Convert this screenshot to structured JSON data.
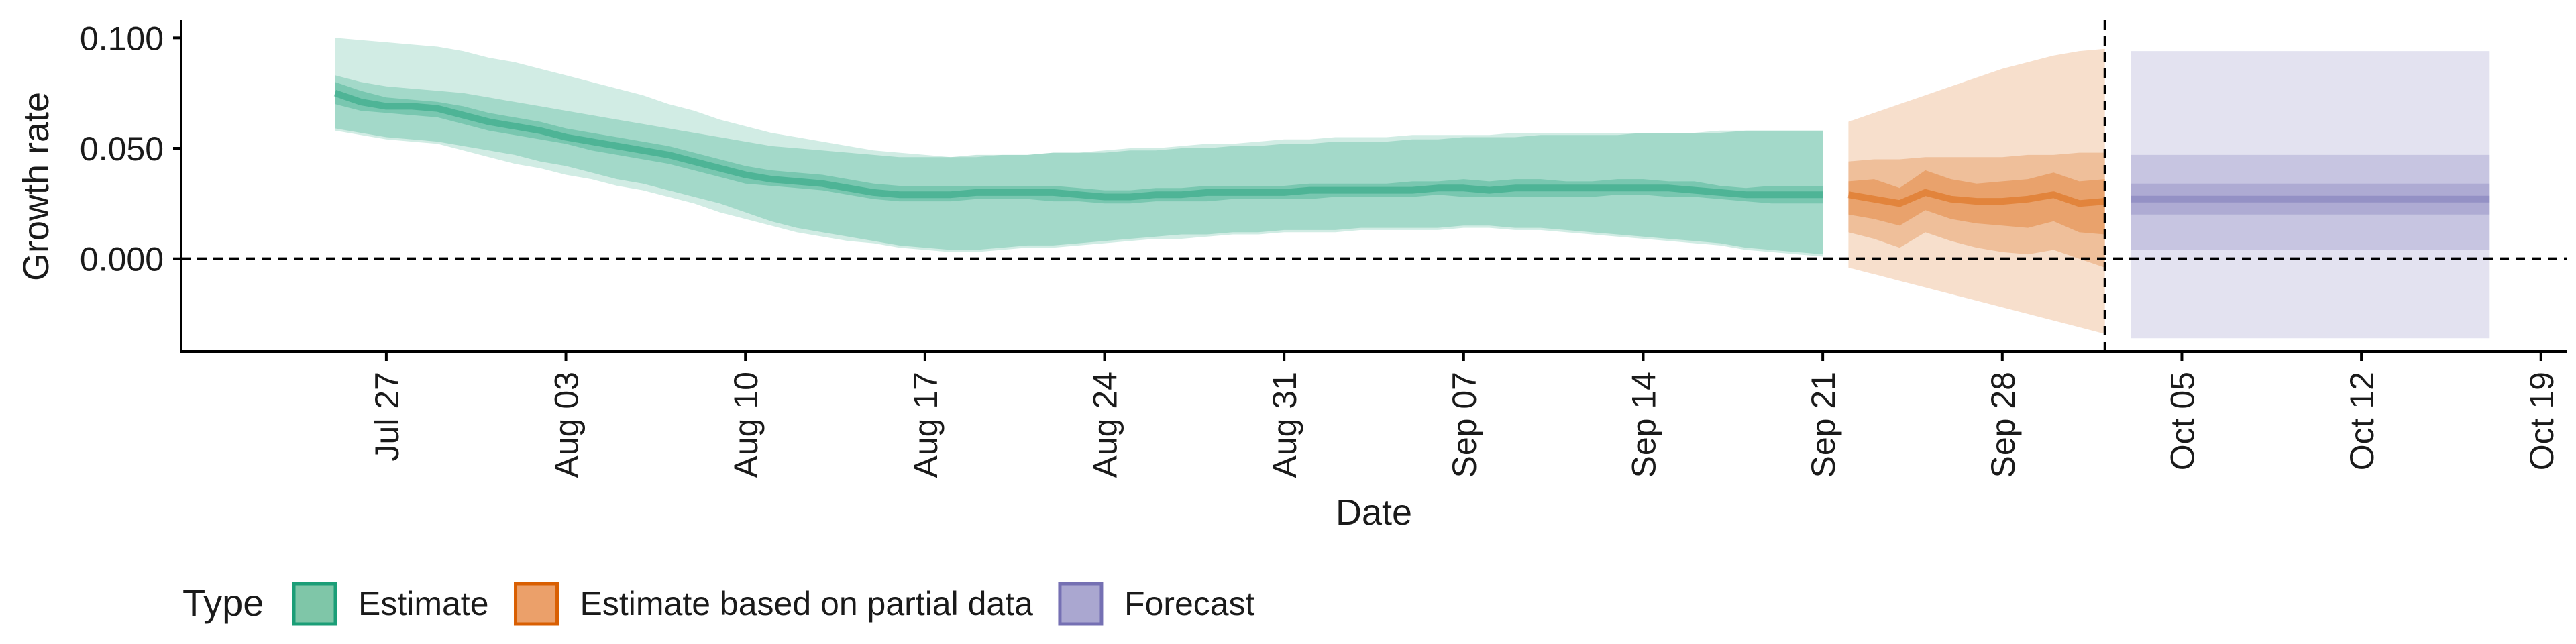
{
  "chart_data": {
    "type": "area",
    "xlabel": "Date",
    "ylabel": "Growth rate",
    "x_range": [
      "2021-07-19",
      "2021-10-20"
    ],
    "ylim": [
      -0.042,
      0.108
    ],
    "y_ticks": [
      0.0,
      0.05,
      0.1
    ],
    "y_tick_labels": [
      "0.000",
      "0.050",
      "0.100"
    ],
    "x_ticks": [
      "2021-07-27",
      "2021-08-03",
      "2021-08-10",
      "2021-08-17",
      "2021-08-24",
      "2021-08-31",
      "2021-09-07",
      "2021-09-14",
      "2021-09-21",
      "2021-09-28",
      "2021-10-05",
      "2021-10-12",
      "2021-10-19"
    ],
    "x_tick_labels": [
      "Jul 27",
      "Aug 03",
      "Aug 10",
      "Aug 17",
      "Aug 24",
      "Aug 31",
      "Sep 07",
      "Sep 14",
      "Sep 21",
      "Sep 28",
      "Oct 05",
      "Oct 12",
      "Oct 19"
    ],
    "hline": 0,
    "forecast_start_line": "2021-10-02",
    "grid": false,
    "legend": {
      "title": "Type",
      "position": "bottom-left",
      "entries": [
        {
          "label": "Estimate",
          "fill": "#7fc6a8",
          "border": "#1b9e77"
        },
        {
          "label": "Estimate based on partial data",
          "fill": "#eba06a",
          "border": "#d95f02"
        },
        {
          "label": "Forecast",
          "fill": "#aaa7d0",
          "border": "#7570b3"
        }
      ]
    },
    "colors": {
      "estimate": "#1b9e77",
      "partial": "#d95f02",
      "forecast": "#7570b3"
    },
    "series": [
      {
        "name": "Estimate",
        "type": "Estimate",
        "x": [
          "2021-07-25",
          "2021-07-26",
          "2021-07-27",
          "2021-07-28",
          "2021-07-29",
          "2021-07-30",
          "2021-07-31",
          "2021-08-01",
          "2021-08-02",
          "2021-08-03",
          "2021-08-04",
          "2021-08-05",
          "2021-08-06",
          "2021-08-07",
          "2021-08-08",
          "2021-08-09",
          "2021-08-10",
          "2021-08-11",
          "2021-08-12",
          "2021-08-13",
          "2021-08-14",
          "2021-08-15",
          "2021-08-16",
          "2021-08-17",
          "2021-08-18",
          "2021-08-19",
          "2021-08-20",
          "2021-08-21",
          "2021-08-22",
          "2021-08-23",
          "2021-08-24",
          "2021-08-25",
          "2021-08-26",
          "2021-08-27",
          "2021-08-28",
          "2021-08-29",
          "2021-08-30",
          "2021-08-31",
          "2021-09-01",
          "2021-09-02",
          "2021-09-03",
          "2021-09-04",
          "2021-09-05",
          "2021-09-06",
          "2021-09-07",
          "2021-09-08",
          "2021-09-09",
          "2021-09-10",
          "2021-09-11",
          "2021-09-12",
          "2021-09-13",
          "2021-09-14",
          "2021-09-15",
          "2021-09-16",
          "2021-09-17",
          "2021-09-18",
          "2021-09-19",
          "2021-09-20",
          "2021-09-21"
        ],
        "median": [
          0.075,
          0.071,
          0.069,
          0.069,
          0.068,
          0.065,
          0.062,
          0.06,
          0.058,
          0.055,
          0.053,
          0.051,
          0.049,
          0.047,
          0.044,
          0.041,
          0.038,
          0.036,
          0.035,
          0.034,
          0.032,
          0.03,
          0.029,
          0.029,
          0.029,
          0.03,
          0.03,
          0.03,
          0.03,
          0.029,
          0.028,
          0.028,
          0.029,
          0.029,
          0.03,
          0.03,
          0.03,
          0.03,
          0.031,
          0.031,
          0.031,
          0.031,
          0.031,
          0.032,
          0.032,
          0.031,
          0.032,
          0.032,
          0.032,
          0.032,
          0.032,
          0.032,
          0.032,
          0.031,
          0.03,
          0.029,
          0.029,
          0.029,
          0.029
        ],
        "lower_50": [
          0.07,
          0.067,
          0.066,
          0.065,
          0.064,
          0.061,
          0.058,
          0.056,
          0.054,
          0.052,
          0.049,
          0.047,
          0.045,
          0.043,
          0.04,
          0.037,
          0.034,
          0.033,
          0.032,
          0.031,
          0.029,
          0.027,
          0.026,
          0.026,
          0.026,
          0.027,
          0.027,
          0.027,
          0.026,
          0.026,
          0.025,
          0.025,
          0.026,
          0.026,
          0.026,
          0.027,
          0.027,
          0.027,
          0.027,
          0.028,
          0.028,
          0.028,
          0.028,
          0.029,
          0.028,
          0.028,
          0.028,
          0.028,
          0.028,
          0.028,
          0.029,
          0.029,
          0.028,
          0.028,
          0.027,
          0.026,
          0.025,
          0.025,
          0.025
        ],
        "upper_50": [
          0.08,
          0.076,
          0.073,
          0.072,
          0.071,
          0.069,
          0.066,
          0.064,
          0.062,
          0.059,
          0.057,
          0.055,
          0.053,
          0.051,
          0.048,
          0.045,
          0.042,
          0.04,
          0.039,
          0.038,
          0.036,
          0.034,
          0.033,
          0.033,
          0.033,
          0.033,
          0.033,
          0.033,
          0.033,
          0.032,
          0.031,
          0.031,
          0.032,
          0.032,
          0.033,
          0.033,
          0.033,
          0.033,
          0.034,
          0.034,
          0.034,
          0.034,
          0.035,
          0.035,
          0.036,
          0.035,
          0.036,
          0.036,
          0.035,
          0.035,
          0.036,
          0.036,
          0.035,
          0.035,
          0.033,
          0.032,
          0.033,
          0.033,
          0.033
        ],
        "lower_90": [
          0.059,
          0.057,
          0.055,
          0.054,
          0.053,
          0.051,
          0.049,
          0.047,
          0.044,
          0.042,
          0.039,
          0.036,
          0.034,
          0.031,
          0.028,
          0.025,
          0.021,
          0.017,
          0.014,
          0.012,
          0.01,
          0.008,
          0.006,
          0.005,
          0.004,
          0.004,
          0.005,
          0.006,
          0.006,
          0.007,
          0.008,
          0.009,
          0.01,
          0.011,
          0.011,
          0.012,
          0.012,
          0.013,
          0.013,
          0.013,
          0.014,
          0.014,
          0.014,
          0.014,
          0.015,
          0.015,
          0.014,
          0.014,
          0.013,
          0.012,
          0.011,
          0.01,
          0.009,
          0.008,
          0.007,
          0.005,
          0.004,
          0.003,
          0.002
        ],
        "upper_90": [
          0.083,
          0.08,
          0.078,
          0.077,
          0.076,
          0.075,
          0.073,
          0.071,
          0.069,
          0.067,
          0.065,
          0.063,
          0.061,
          0.059,
          0.057,
          0.055,
          0.053,
          0.051,
          0.05,
          0.049,
          0.048,
          0.047,
          0.046,
          0.046,
          0.046,
          0.047,
          0.047,
          0.047,
          0.048,
          0.048,
          0.048,
          0.049,
          0.049,
          0.05,
          0.05,
          0.051,
          0.051,
          0.052,
          0.052,
          0.053,
          0.053,
          0.053,
          0.054,
          0.054,
          0.055,
          0.055,
          0.055,
          0.056,
          0.056,
          0.056,
          0.056,
          0.057,
          0.057,
          0.057,
          0.057,
          0.058,
          0.058,
          0.058,
          0.058
        ],
        "lower_outer": [
          0.058,
          0.056,
          0.054,
          0.053,
          0.052,
          0.049,
          0.046,
          0.043,
          0.041,
          0.038,
          0.036,
          0.033,
          0.031,
          0.028,
          0.025,
          0.021,
          0.018,
          0.015,
          0.012,
          0.01,
          0.008,
          0.007,
          0.005,
          0.004,
          0.003,
          0.003,
          0.004,
          0.005,
          0.005,
          0.006,
          0.007,
          0.008,
          0.009,
          0.009,
          0.01,
          0.011,
          0.011,
          0.012,
          0.012,
          0.012,
          0.013,
          0.013,
          0.013,
          0.013,
          0.014,
          0.014,
          0.013,
          0.013,
          0.012,
          0.011,
          0.01,
          0.009,
          0.008,
          0.007,
          0.006,
          0.004,
          0.003,
          0.002,
          0.001
        ],
        "upper_outer": [
          0.1,
          0.099,
          0.098,
          0.097,
          0.096,
          0.094,
          0.091,
          0.089,
          0.086,
          0.083,
          0.08,
          0.077,
          0.074,
          0.07,
          0.067,
          0.063,
          0.06,
          0.057,
          0.055,
          0.053,
          0.051,
          0.049,
          0.048,
          0.047,
          0.046,
          0.046,
          0.047,
          0.047,
          0.048,
          0.048,
          0.049,
          0.05,
          0.05,
          0.051,
          0.052,
          0.052,
          0.053,
          0.054,
          0.054,
          0.055,
          0.055,
          0.055,
          0.056,
          0.056,
          0.056,
          0.056,
          0.057,
          0.057,
          0.057,
          0.057,
          0.057,
          0.057,
          0.057,
          0.057,
          0.058,
          0.058,
          0.058,
          0.058,
          0.058
        ]
      },
      {
        "name": "Estimate based on partial data",
        "type": "Estimate based on partial data",
        "x": [
          "2021-09-22",
          "2021-09-23",
          "2021-09-24",
          "2021-09-25",
          "2021-09-26",
          "2021-09-27",
          "2021-09-28",
          "2021-09-29",
          "2021-09-30",
          "2021-10-01",
          "2021-10-02"
        ],
        "median": [
          0.029,
          0.027,
          0.025,
          0.03,
          0.027,
          0.026,
          0.026,
          0.027,
          0.029,
          0.025,
          0.026
        ],
        "lower_50": [
          0.02,
          0.018,
          0.015,
          0.022,
          0.018,
          0.016,
          0.015,
          0.014,
          0.017,
          0.012,
          0.011
        ],
        "upper_50": [
          0.035,
          0.036,
          0.032,
          0.04,
          0.036,
          0.034,
          0.035,
          0.036,
          0.039,
          0.035,
          0.036
        ],
        "lower_90": [
          0.012,
          0.009,
          0.005,
          0.012,
          0.008,
          0.005,
          0.003,
          0.002,
          0.004,
          0.0,
          -0.004
        ],
        "upper_90": [
          0.044,
          0.045,
          0.045,
          0.046,
          0.046,
          0.046,
          0.046,
          0.047,
          0.047,
          0.048,
          0.048
        ],
        "lower_outer": [
          -0.004,
          -0.007,
          -0.01,
          -0.013,
          -0.016,
          -0.019,
          -0.022,
          -0.025,
          -0.028,
          -0.031,
          -0.034
        ],
        "upper_outer": [
          0.062,
          0.066,
          0.07,
          0.074,
          0.078,
          0.082,
          0.086,
          0.089,
          0.092,
          0.094,
          0.095
        ]
      },
      {
        "name": "Forecast",
        "type": "Forecast",
        "x": [
          "2021-10-03",
          "2021-10-17"
        ],
        "median": [
          0.027,
          0.027
        ],
        "lower_50": [
          0.02,
          0.02
        ],
        "upper_50": [
          0.034,
          0.034
        ],
        "lower_90": [
          0.004,
          0.004
        ],
        "upper_90": [
          0.047,
          0.047
        ],
        "lower_outer": [
          -0.036,
          -0.036
        ],
        "upper_outer": [
          0.094,
          0.094
        ]
      }
    ]
  }
}
